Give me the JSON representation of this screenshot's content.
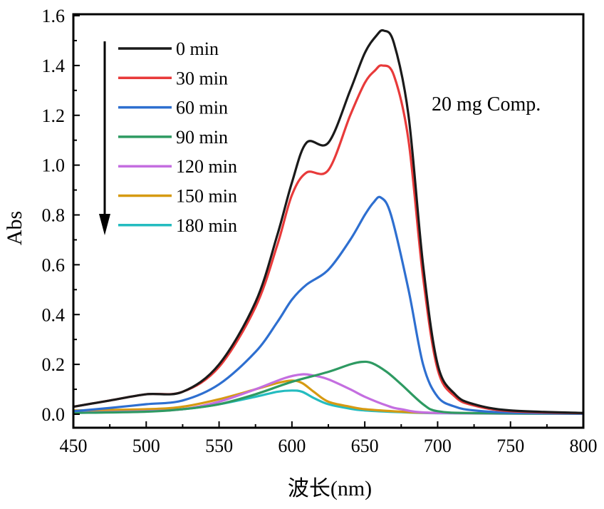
{
  "chart_data": {
    "type": "line",
    "title": "",
    "xlabel": "波长(nm)",
    "ylabel": "Abs",
    "xlim": [
      450,
      800
    ],
    "ylim": [
      0,
      1.6
    ],
    "xticks": [
      "450",
      "500",
      "550",
      "600",
      "650",
      "700",
      "750",
      "800"
    ],
    "yticks": [
      "0.0",
      "0.2",
      "0.4",
      "0.6",
      "0.8",
      "1.0",
      "1.2",
      "1.4",
      "1.6"
    ],
    "annotation": "20 mg Comp.",
    "legend_position": "top-left",
    "series": [
      {
        "name": "0 min",
        "color": "#1a1a1a",
        "x": [
          450,
          475,
          500,
          525,
          550,
          575,
          590,
          600,
          610,
          625,
          640,
          650,
          658,
          663,
          670,
          680,
          690,
          700,
          712,
          725,
          750,
          800
        ],
        "y": [
          0.03,
          0.055,
          0.08,
          0.09,
          0.2,
          0.45,
          0.72,
          0.93,
          1.09,
          1.09,
          1.3,
          1.45,
          1.52,
          1.54,
          1.49,
          1.2,
          0.6,
          0.2,
          0.08,
          0.04,
          0.015,
          0.005
        ]
      },
      {
        "name": "30 min",
        "color": "#e83a3a",
        "x": [
          450,
          475,
          500,
          525,
          550,
          575,
          590,
          600,
          610,
          625,
          640,
          650,
          657,
          662,
          670,
          680,
          690,
          700,
          712,
          725,
          750,
          800
        ],
        "y": [
          0.03,
          0.055,
          0.08,
          0.09,
          0.19,
          0.43,
          0.68,
          0.88,
          0.97,
          0.98,
          1.2,
          1.33,
          1.38,
          1.4,
          1.36,
          1.1,
          0.55,
          0.18,
          0.07,
          0.035,
          0.012,
          0.004
        ]
      },
      {
        "name": "60 min",
        "color": "#2e6fd0",
        "x": [
          450,
          475,
          500,
          525,
          550,
          575,
          590,
          600,
          610,
          625,
          640,
          650,
          656,
          661,
          668,
          680,
          690,
          700,
          712,
          725,
          750,
          800
        ],
        "y": [
          0.012,
          0.025,
          0.04,
          0.055,
          0.12,
          0.25,
          0.37,
          0.46,
          0.52,
          0.58,
          0.7,
          0.8,
          0.85,
          0.87,
          0.8,
          0.5,
          0.2,
          0.07,
          0.03,
          0.015,
          0.006,
          0.002
        ]
      },
      {
        "name": "90 min",
        "color": "#2e9a62",
        "x": [
          450,
          500,
          525,
          550,
          575,
          600,
          625,
          640,
          648,
          655,
          665,
          675,
          690,
          700,
          725,
          800
        ],
        "y": [
          0.005,
          0.01,
          0.02,
          0.04,
          0.08,
          0.13,
          0.17,
          0.2,
          0.21,
          0.205,
          0.17,
          0.12,
          0.04,
          0.012,
          0.004,
          0.002
        ]
      },
      {
        "name": "120 min",
        "color": "#c46ee0",
        "x": [
          450,
          500,
          525,
          550,
          575,
          595,
          607,
          615,
          625,
          640,
          650,
          665,
          675,
          700,
          800
        ],
        "y": [
          0.006,
          0.012,
          0.02,
          0.05,
          0.1,
          0.145,
          0.16,
          0.155,
          0.14,
          0.1,
          0.07,
          0.035,
          0.02,
          0.005,
          0.002
        ]
      },
      {
        "name": "150 min",
        "color": "#d69a12",
        "x": [
          450,
          500,
          525,
          550,
          575,
          590,
          600,
          607,
          615,
          625,
          640,
          650,
          675,
          700,
          800
        ],
        "y": [
          0.015,
          0.02,
          0.03,
          0.06,
          0.1,
          0.125,
          0.135,
          0.125,
          0.09,
          0.05,
          0.03,
          0.02,
          0.01,
          0.005,
          0.002
        ]
      },
      {
        "name": "180 min",
        "color": "#24bcc0",
        "x": [
          450,
          500,
          525,
          550,
          575,
          590,
          600,
          607,
          615,
          625,
          640,
          650,
          675,
          700,
          800
        ],
        "y": [
          0.01,
          0.015,
          0.02,
          0.04,
          0.07,
          0.09,
          0.095,
          0.09,
          0.065,
          0.04,
          0.022,
          0.015,
          0.008,
          0.004,
          0.002
        ]
      }
    ]
  }
}
